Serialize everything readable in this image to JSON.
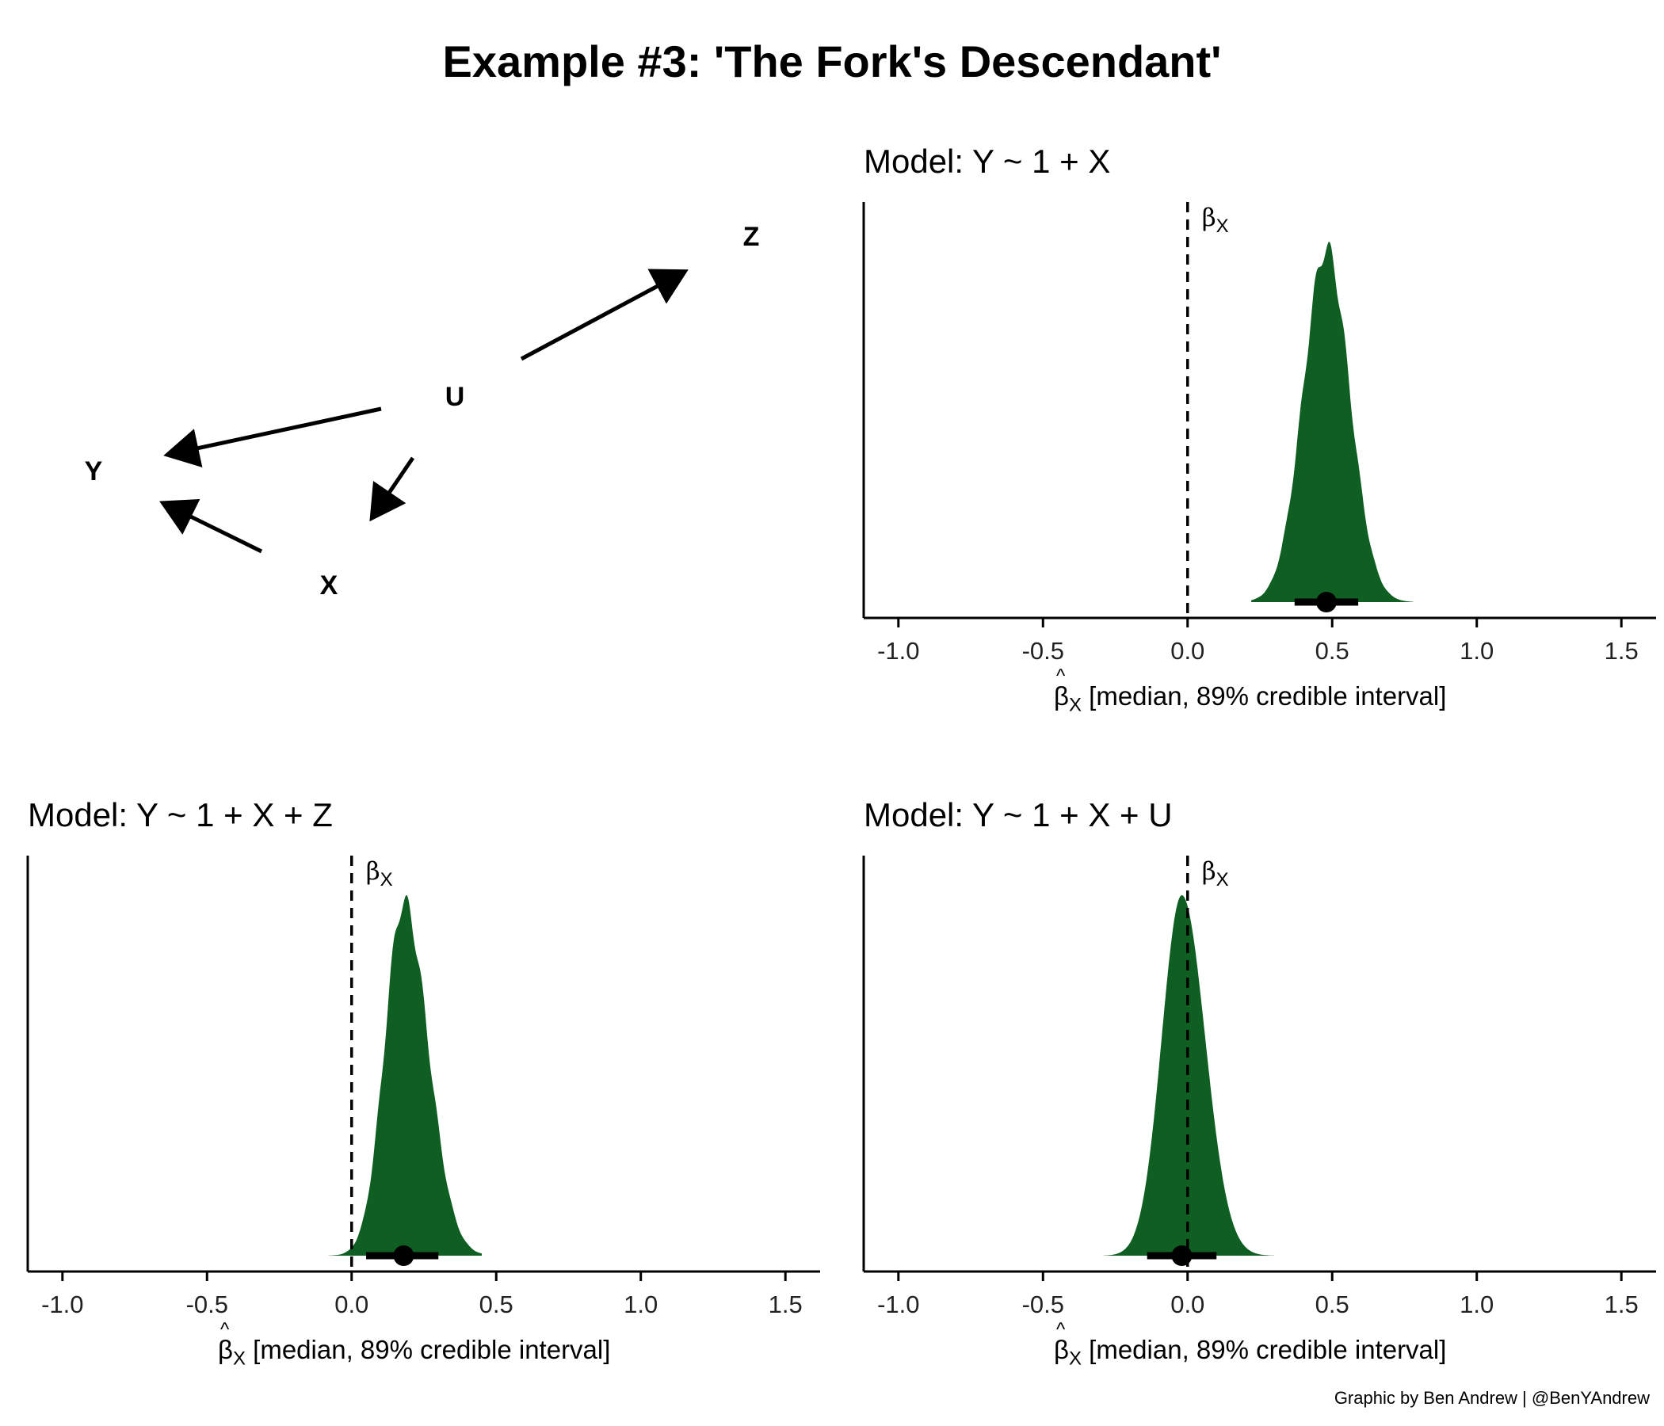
{
  "title": "Example #3: 'The Fork's Descendant'",
  "caption": "Graphic by Ben Andrew | @BenYAndrew",
  "dag": {
    "nodes": [
      "Z",
      "U",
      "Y",
      "X"
    ],
    "edges": [
      [
        "U",
        "Z"
      ],
      [
        "U",
        "Y"
      ],
      [
        "U",
        "X"
      ],
      [
        "X",
        "Y"
      ]
    ]
  },
  "colors": {
    "density": "#0f5e22",
    "line": "#000000"
  },
  "chart_data": [
    {
      "type": "area",
      "title": "Model: Y ~ 1 + X",
      "xlabel_symbol": "β",
      "xlabel_sub": "X",
      "xlabel_text": " [median, 89% credible interval]",
      "reference_label": "β",
      "reference_label_sub": "X",
      "reference_x": 0.0,
      "xlim": [
        -1.12,
        1.62
      ],
      "xticks": [
        "-1.0",
        "-0.5",
        "0.0",
        "0.5",
        "1.0",
        "1.5"
      ],
      "density": {
        "median": 0.48,
        "sd": 0.08,
        "skew": 0.0,
        "min": 0.22,
        "max": 0.78,
        "jitter": true
      },
      "interval_89": [
        0.37,
        0.59
      ]
    },
    {
      "type": "area",
      "title": "Model: Y ~ 1 + X + Z",
      "xlabel_symbol": "β",
      "xlabel_sub": "X",
      "xlabel_text": " [median, 89% credible interval]",
      "reference_label": "β",
      "reference_label_sub": "X",
      "reference_x": 0.0,
      "xlim": [
        -1.12,
        1.62
      ],
      "xticks": [
        "-1.0",
        "-0.5",
        "0.0",
        "0.5",
        "1.0",
        "1.5"
      ],
      "density": {
        "median": 0.18,
        "sd": 0.075,
        "skew": 0.25,
        "min": -0.08,
        "max": 0.45,
        "jitter": true
      },
      "interval_89": [
        0.05,
        0.3
      ]
    },
    {
      "type": "area",
      "title": "Model: Y ~ 1 + X + U",
      "xlabel_symbol": "β",
      "xlabel_sub": "X",
      "xlabel_text": " [median, 89% credible interval]",
      "reference_label": "β",
      "reference_label_sub": "X",
      "reference_x": 0.0,
      "xlim": [
        -1.12,
        1.62
      ],
      "xticks": [
        "-1.0",
        "-0.5",
        "0.0",
        "0.5",
        "1.0",
        "1.5"
      ],
      "density": {
        "median": -0.02,
        "sd": 0.075,
        "skew": 0.15,
        "min": -0.29,
        "max": 0.3,
        "jitter": false
      },
      "interval_89": [
        -0.14,
        0.1
      ]
    }
  ]
}
